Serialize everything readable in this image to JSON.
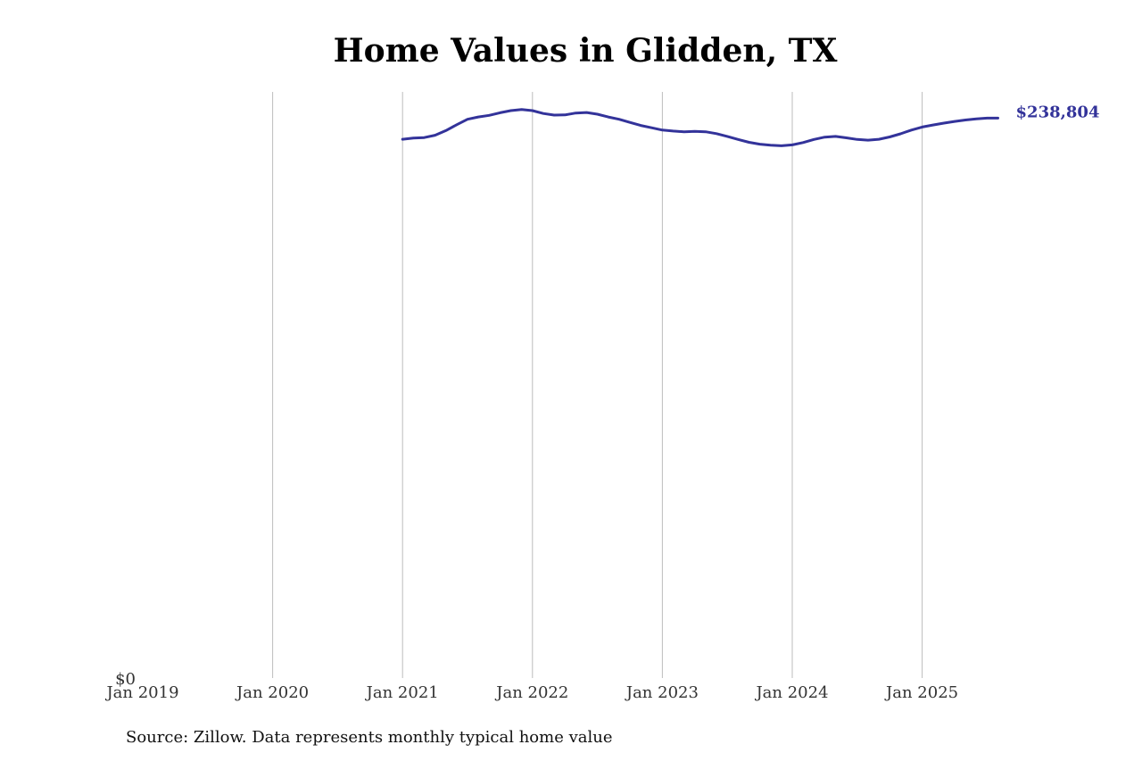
{
  "chart_data": {
    "type": "line",
    "title": "Home Values in Glidden, TX",
    "source": "Source: Zillow. Data represents monthly typical home value",
    "xlabel": "",
    "ylabel": "",
    "x_ticks": [
      "Jan 2019",
      "Jan 2020",
      "Jan 2021",
      "Jan 2022",
      "Jan 2023",
      "Jan 2024",
      "Jan 2025"
    ],
    "y_ticks": [
      "$0"
    ],
    "ylim": [
      0,
      250000
    ],
    "grid": "vertical",
    "line_color": "#33339a",
    "end_label": "$238,804",
    "series": [
      {
        "x": [
          "2021-01",
          "2021-02",
          "2021-03",
          "2021-04",
          "2021-05",
          "2021-06",
          "2021-07",
          "2021-08",
          "2021-09",
          "2021-10",
          "2021-11",
          "2021-12",
          "2022-01",
          "2022-02",
          "2022-03",
          "2022-04",
          "2022-05",
          "2022-06",
          "2022-07",
          "2022-08",
          "2022-09",
          "2022-10",
          "2022-11",
          "2022-12",
          "2023-01",
          "2023-02",
          "2023-03",
          "2023-04",
          "2023-05",
          "2023-06",
          "2023-07",
          "2023-08",
          "2023-09",
          "2023-10",
          "2023-11",
          "2023-12",
          "2024-01",
          "2024-02",
          "2024-03",
          "2024-04",
          "2024-05",
          "2024-06",
          "2024-07",
          "2024-08",
          "2024-09",
          "2024-10",
          "2024-11",
          "2024-12",
          "2025-01",
          "2025-02",
          "2025-03",
          "2025-04",
          "2025-05",
          "2025-06",
          "2025-07",
          "2025-08"
        ],
        "y": [
          229800,
          230300,
          230500,
          231500,
          233500,
          236000,
          238300,
          239300,
          240000,
          241100,
          242000,
          242500,
          242000,
          240800,
          240100,
          240200,
          241000,
          241200,
          240500,
          239300,
          238300,
          237000,
          235700,
          234700,
          233700,
          233300,
          233000,
          233200,
          233000,
          232200,
          231000,
          229700,
          228500,
          227700,
          227300,
          227000,
          227400,
          228400,
          229700,
          230700,
          231000,
          230400,
          229700,
          229400,
          229800,
          230800,
          232100,
          233700,
          235000,
          235900,
          236700,
          237400,
          238000,
          238500,
          238800,
          238804
        ]
      }
    ]
  }
}
